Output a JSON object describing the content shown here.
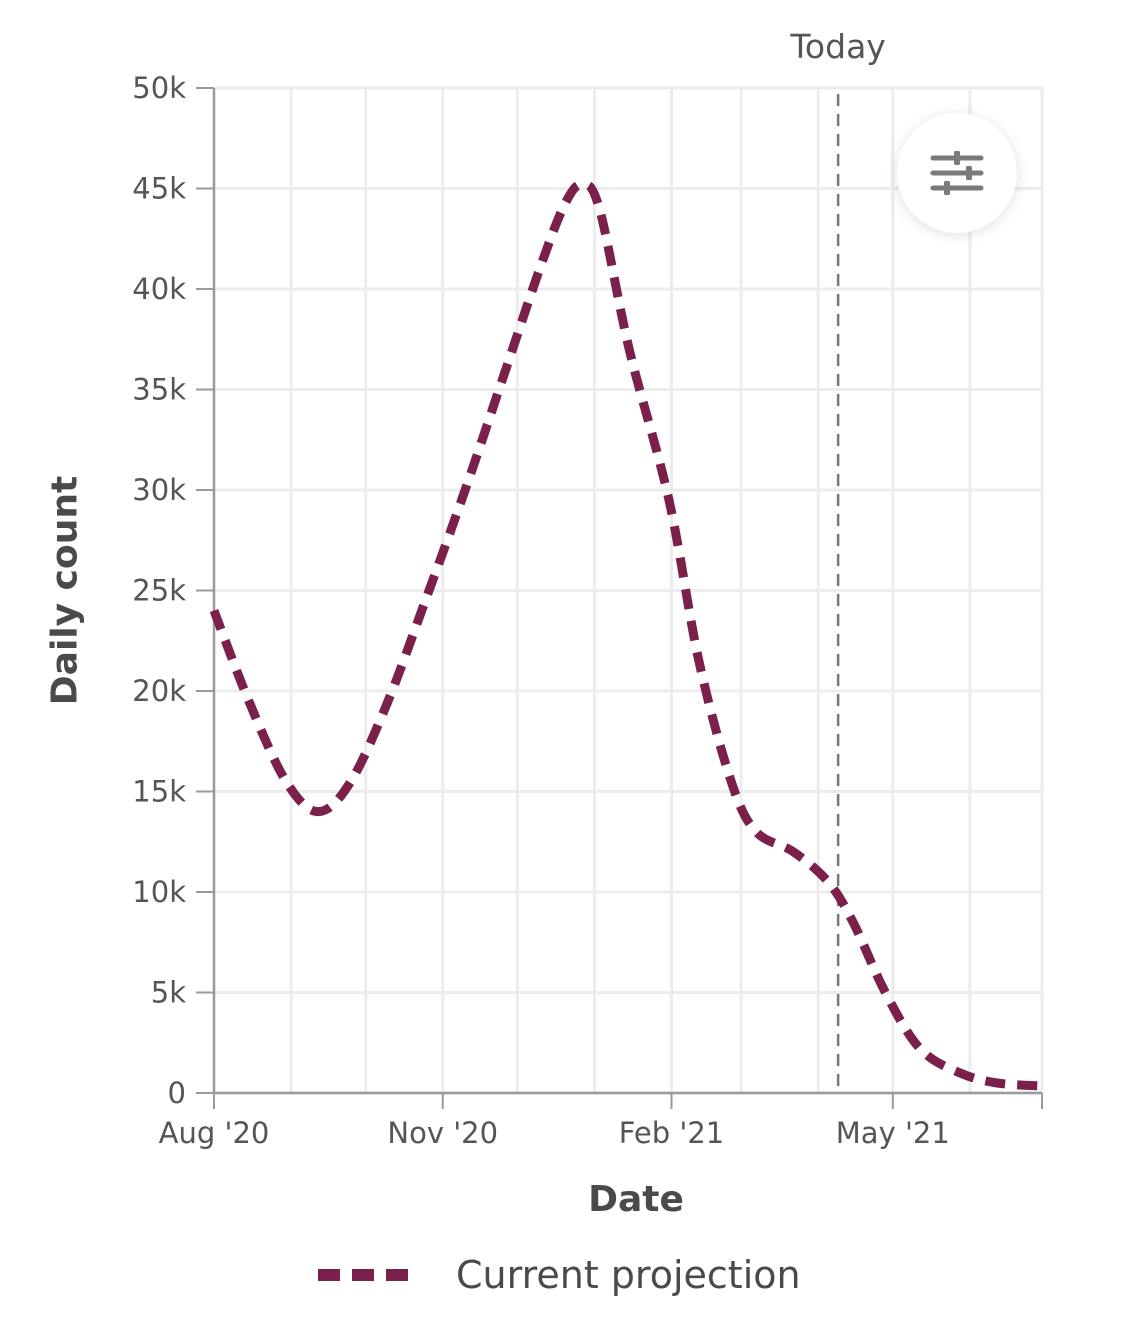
{
  "chart_data": {
    "type": "line",
    "xlabel": "Date",
    "ylabel": "Daily count",
    "ylim": [
      0,
      50000
    ],
    "yticks": [
      0,
      5000,
      10000,
      15000,
      20000,
      25000,
      30000,
      35000,
      40000,
      45000,
      50000
    ],
    "ytick_labels": [
      "0",
      "5k",
      "10k",
      "15k",
      "20k",
      "25k",
      "30k",
      "35k",
      "40k",
      "45k",
      "50k"
    ],
    "xlim": [
      "2020-08-01",
      "2021-06-30"
    ],
    "xticks": [
      {
        "date": "2020-08-01",
        "label": "Aug '20"
      },
      {
        "date": "2020-11-01",
        "label": "Nov '20"
      },
      {
        "date": "2021-02-01",
        "label": "Feb '21"
      },
      {
        "date": "2021-05-01",
        "label": "May '21"
      }
    ],
    "grid": true,
    "today_marker": {
      "date": "2021-04-09",
      "label": "Today"
    },
    "series": [
      {
        "name": "Current projection",
        "color": "#7b1f4b",
        "line_style": "dashed",
        "points": [
          {
            "x": "2020-08-01",
            "y": 24000
          },
          {
            "x": "2020-08-15",
            "y": 19500
          },
          {
            "x": "2020-08-30",
            "y": 15500
          },
          {
            "x": "2020-09-12",
            "y": 14000
          },
          {
            "x": "2020-09-25",
            "y": 15500
          },
          {
            "x": "2020-10-10",
            "y": 19500
          },
          {
            "x": "2020-10-25",
            "y": 24500
          },
          {
            "x": "2020-11-10",
            "y": 30000
          },
          {
            "x": "2020-11-25",
            "y": 35500
          },
          {
            "x": "2020-12-10",
            "y": 41000
          },
          {
            "x": "2020-12-20",
            "y": 44200
          },
          {
            "x": "2020-12-27",
            "y": 45200
          },
          {
            "x": "2021-01-03",
            "y": 44000
          },
          {
            "x": "2021-01-15",
            "y": 37000
          },
          {
            "x": "2021-01-31",
            "y": 29500
          },
          {
            "x": "2021-02-12",
            "y": 21500
          },
          {
            "x": "2021-02-25",
            "y": 15500
          },
          {
            "x": "2021-03-07",
            "y": 13000
          },
          {
            "x": "2021-03-22",
            "y": 12000
          },
          {
            "x": "2021-04-05",
            "y": 10500
          },
          {
            "x": "2021-04-15",
            "y": 8500
          },
          {
            "x": "2021-04-28",
            "y": 5000
          },
          {
            "x": "2021-05-12",
            "y": 2200
          },
          {
            "x": "2021-05-28",
            "y": 1000
          },
          {
            "x": "2021-06-12",
            "y": 500
          },
          {
            "x": "2021-06-30",
            "y": 350
          }
        ]
      }
    ],
    "legend": {
      "position": "bottom",
      "label": "Current projection"
    }
  },
  "controls": {
    "settings_icon": "sliders-icon"
  }
}
